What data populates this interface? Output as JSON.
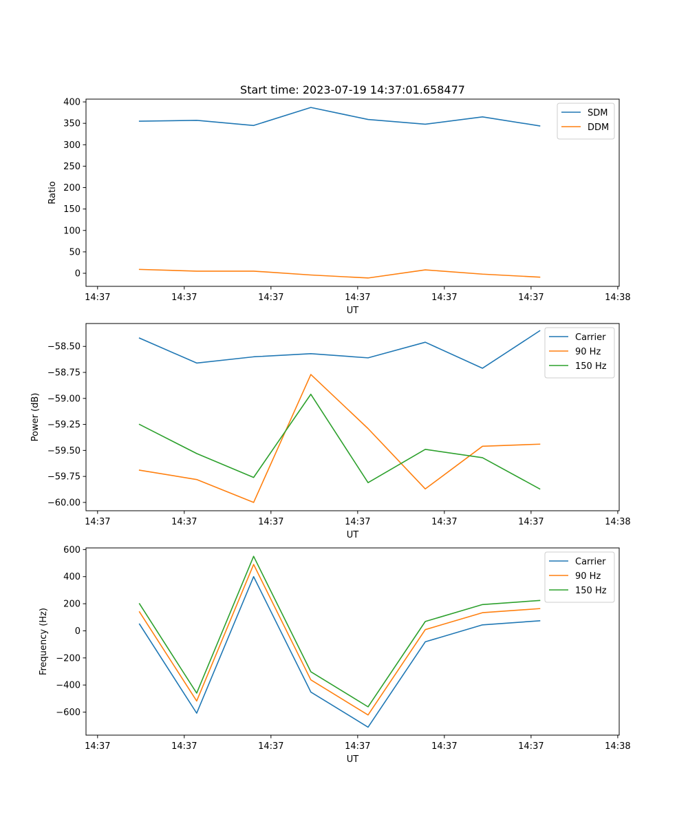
{
  "figure_title": "Start time: 2023-07-19 14:37:01.658477",
  "chart_data": [
    {
      "type": "line",
      "title": "Start time: 2023-07-19 14:37:01.658477",
      "xlabel": "UT",
      "ylabel": "Ratio",
      "x_tick_labels": [
        "14:37",
        "14:37",
        "14:37",
        "14:37",
        "14:37",
        "14:37",
        "14:38"
      ],
      "x_ticks": [
        0,
        3,
        6,
        9,
        12,
        15,
        18
      ],
      "xlim": [
        -0.4,
        18.05
      ],
      "x": [
        1.45,
        3.43,
        5.4,
        7.38,
        9.36,
        11.34,
        13.32,
        15.3
      ],
      "y_ticks": [
        0,
        50,
        100,
        150,
        200,
        250,
        300,
        350,
        400
      ],
      "y_tick_labels": [
        "0",
        "50",
        "100",
        "150",
        "200",
        "250",
        "300",
        "350",
        "400"
      ],
      "ylim": [
        -30.5,
        406.5
      ],
      "legend_position": "upper right",
      "series": [
        {
          "name": "SDM",
          "color": "#1f77b4",
          "values": [
            355,
            357,
            345,
            387,
            359,
            348,
            365,
            344
          ]
        },
        {
          "name": "DDM",
          "color": "#ff7f0e",
          "values": [
            9,
            5,
            5,
            -4,
            -11,
            8,
            -2,
            -9
          ]
        }
      ]
    },
    {
      "type": "line",
      "xlabel": "UT",
      "ylabel": "Power (dB)",
      "x_tick_labels": [
        "14:37",
        "14:37",
        "14:37",
        "14:37",
        "14:37",
        "14:37",
        "14:38"
      ],
      "x_ticks": [
        0,
        3,
        6,
        9,
        12,
        15,
        18
      ],
      "xlim": [
        -0.4,
        18.05
      ],
      "x": [
        1.45,
        3.43,
        5.4,
        7.38,
        9.36,
        11.34,
        13.32,
        15.3
      ],
      "y_ticks": [
        -60.0,
        -59.75,
        -59.5,
        -59.25,
        -59.0,
        -58.75,
        -58.5
      ],
      "y_tick_labels": [
        "−60.00",
        "−59.75",
        "−59.50",
        "−59.25",
        "−59.00",
        "−58.75",
        "−58.50"
      ],
      "ylim": [
        -60.08,
        -58.28
      ],
      "legend_position": "upper right",
      "series": [
        {
          "name": "Carrier",
          "color": "#1f77b4",
          "values": [
            -58.42,
            -58.66,
            -58.6,
            -58.57,
            -58.61,
            -58.46,
            -58.71,
            -58.35
          ]
        },
        {
          "name": "90 Hz",
          "color": "#ff7f0e",
          "values": [
            -59.69,
            -59.78,
            -60.0,
            -58.77,
            -59.29,
            -59.87,
            -59.46,
            -59.44
          ]
        },
        {
          "name": "150 Hz",
          "color": "#2ca02c",
          "values": [
            -59.25,
            -59.53,
            -59.76,
            -58.96,
            -59.81,
            -59.49,
            -59.57,
            -59.87
          ]
        }
      ]
    },
    {
      "type": "line",
      "xlabel": "UT",
      "ylabel": "Frequency (Hz)",
      "x_tick_labels": [
        "14:37",
        "14:37",
        "14:37",
        "14:37",
        "14:37",
        "14:37",
        "14:38"
      ],
      "x_ticks": [
        0,
        3,
        6,
        9,
        12,
        15,
        18
      ],
      "xlim": [
        -0.4,
        18.05
      ],
      "x": [
        1.45,
        3.43,
        5.4,
        7.38,
        9.36,
        11.34,
        13.32,
        15.3
      ],
      "y_ticks": [
        -600,
        -400,
        -200,
        0,
        200,
        400,
        600
      ],
      "y_tick_labels": [
        "−600",
        "−400",
        "−200",
        "0",
        "200",
        "400",
        "600"
      ],
      "ylim": [
        -770,
        612
      ],
      "legend_position": "upper right",
      "series": [
        {
          "name": "Carrier",
          "color": "#1f77b4",
          "values": [
            50,
            -608,
            400,
            -452,
            -711,
            -81,
            44,
            74
          ]
        },
        {
          "name": "90 Hz",
          "color": "#ff7f0e",
          "values": [
            140,
            -518,
            490,
            -362,
            -621,
            9,
            134,
            164
          ]
        },
        {
          "name": "150 Hz",
          "color": "#2ca02c",
          "values": [
            200,
            -460,
            550,
            -302,
            -561,
            69,
            194,
            224
          ]
        }
      ]
    }
  ]
}
